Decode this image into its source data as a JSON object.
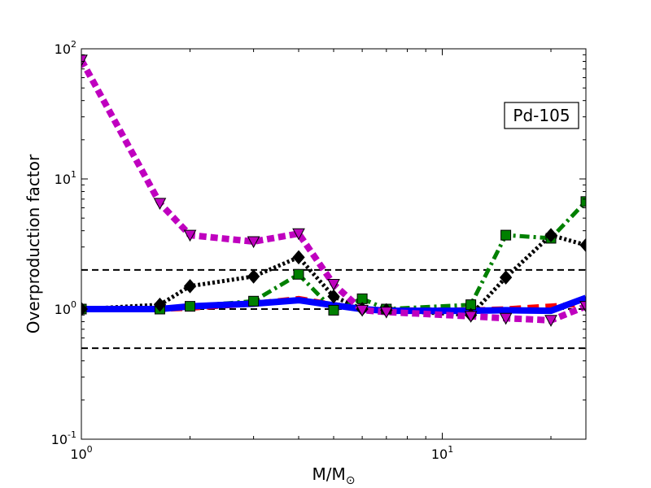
{
  "chart_data": {
    "type": "line",
    "title": "",
    "annotation": "Pd-105",
    "xlabel": "M/M",
    "xlabel_subscript": "⊙",
    "ylabel": "Overproduction factor",
    "xscale": "log",
    "yscale": "log",
    "xlim": [
      1,
      25
    ],
    "ylim": [
      0.1,
      100
    ],
    "x_ticks": [
      {
        "value": 1,
        "base": "10",
        "exp": "0"
      },
      {
        "value": 10,
        "base": "10",
        "exp": "1"
      }
    ],
    "y_ticks": [
      {
        "value": 0.1,
        "base": "10",
        "exp": "-1"
      },
      {
        "value": 1,
        "base": "10",
        "exp": "0"
      },
      {
        "value": 10,
        "base": "10",
        "exp": "1"
      },
      {
        "value": 100,
        "base": "10",
        "exp": "2"
      }
    ],
    "reference_lines": [
      {
        "y": 2.0,
        "color": "#000000"
      },
      {
        "y": 1.0,
        "color": "#000000"
      },
      {
        "y": 0.5,
        "color": "#000000"
      }
    ],
    "grid": false,
    "series": [
      {
        "color": "#ff0000",
        "linestyle": "dashed",
        "marker": "none",
        "x": [
          1,
          1.65,
          2,
          3,
          4,
          5,
          6,
          7,
          12,
          15,
          20,
          25
        ],
        "y": [
          1.0,
          1.0,
          1.02,
          1.1,
          1.2,
          1.08,
          1.0,
          0.98,
          0.98,
          1.0,
          1.05,
          1.1
        ]
      },
      {
        "color": "#008000",
        "linestyle": "dashdot",
        "marker": "square",
        "x": [
          1,
          1.65,
          2,
          3,
          4,
          5,
          6,
          7,
          12,
          15,
          20,
          25
        ],
        "y": [
          1.0,
          1.0,
          1.05,
          1.15,
          1.85,
          0.98,
          1.2,
          1.0,
          1.08,
          3.7,
          3.5,
          6.7
        ]
      },
      {
        "color": "#000000",
        "linestyle": "dotted",
        "marker": "diamond",
        "x": [
          1,
          1.65,
          2,
          3,
          4,
          5,
          6,
          7,
          12,
          15,
          20,
          25
        ],
        "y": [
          1.0,
          1.08,
          1.5,
          1.78,
          2.5,
          1.25,
          1.0,
          0.98,
          0.9,
          1.75,
          3.7,
          3.1
        ]
      },
      {
        "color": "#0000ff",
        "linestyle": "solid",
        "marker": "none",
        "x": [
          1,
          1.65,
          2,
          3,
          4,
          5,
          6,
          7,
          12,
          15,
          20,
          25
        ],
        "y": [
          1.0,
          1.0,
          1.05,
          1.1,
          1.17,
          1.07,
          1.0,
          0.97,
          0.97,
          0.98,
          0.97,
          1.22
        ]
      },
      {
        "color": "#bf00bf",
        "linestyle": "dotted",
        "marker": "triangle-down",
        "x": [
          1,
          1.65,
          2,
          3,
          4,
          5,
          6,
          7,
          12,
          15,
          20,
          25
        ],
        "y": [
          82,
          6.5,
          3.7,
          3.3,
          3.8,
          1.55,
          0.98,
          0.95,
          0.88,
          0.85,
          0.82,
          1.05
        ]
      }
    ]
  }
}
